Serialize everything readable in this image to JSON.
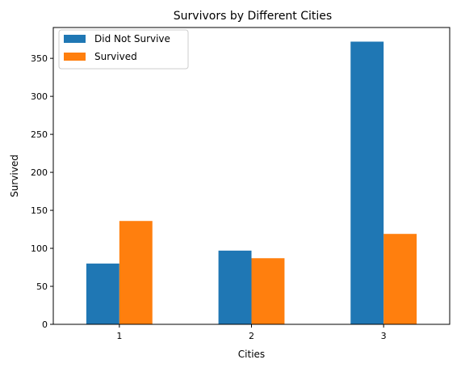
{
  "chart_data": {
    "type": "bar",
    "title": "Survivors by Different Cities",
    "xlabel": "Cities",
    "ylabel": "Survived",
    "categories": [
      "1",
      "2",
      "3"
    ],
    "series": [
      {
        "name": "Did Not Survive",
        "color": "#1f77b4",
        "values": [
          80,
          97,
          372
        ]
      },
      {
        "name": "Survived",
        "color": "#ff7f0e",
        "values": [
          136,
          87,
          119
        ]
      }
    ],
    "ylim": [
      0,
      390.6
    ],
    "yticks": [
      0,
      50,
      100,
      150,
      200,
      250,
      300,
      350
    ],
    "grid": false,
    "legend": "top-left"
  }
}
